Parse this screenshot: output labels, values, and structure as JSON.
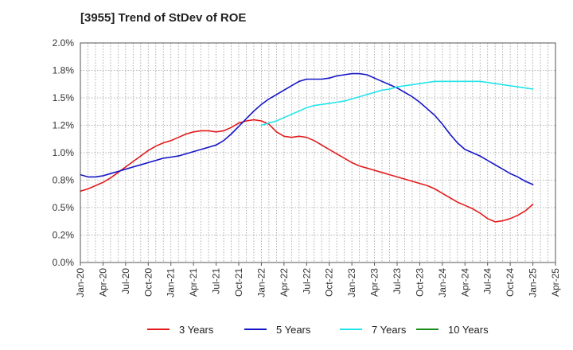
{
  "chart_data": {
    "type": "line",
    "title": "[3955]  Trend of StDev of ROE",
    "xlabel": "",
    "ylabel": "",
    "x_ticks": [
      "Jan-20",
      "Apr-20",
      "Jul-20",
      "Oct-20",
      "Jan-21",
      "Apr-21",
      "Jul-21",
      "Oct-21",
      "Jan-22",
      "Apr-22",
      "Jul-22",
      "Oct-22",
      "Jan-23",
      "Apr-23",
      "Jul-23",
      "Oct-23",
      "Jan-24",
      "Apr-24",
      "Jul-24",
      "Oct-24",
      "Jan-25",
      "Apr-25"
    ],
    "y_ticks": [
      "0.0%",
      "0.2%",
      "0.5%",
      "0.8%",
      "1.0%",
      "1.2%",
      "1.5%",
      "1.8%",
      "2.0%"
    ],
    "ylim": [
      0,
      2.0
    ],
    "grid": true,
    "legend_position": "bottom",
    "series": [
      {
        "name": "3 Years",
        "color": "#e31a1c",
        "x": [
          "Jan-20",
          "Feb-20",
          "Mar-20",
          "Apr-20",
          "May-20",
          "Jun-20",
          "Jul-20",
          "Aug-20",
          "Sep-20",
          "Oct-20",
          "Nov-20",
          "Dec-20",
          "Jan-21",
          "Feb-21",
          "Mar-21",
          "Apr-21",
          "May-21",
          "Jun-21",
          "Jul-21",
          "Aug-21",
          "Sep-21",
          "Oct-21",
          "Nov-21",
          "Dec-21",
          "Jan-22",
          "Feb-22",
          "Mar-22",
          "Apr-22",
          "May-22",
          "Jun-22",
          "Jul-22",
          "Aug-22",
          "Sep-22",
          "Oct-22",
          "Nov-22",
          "Dec-22",
          "Jan-23",
          "Feb-23",
          "Mar-23",
          "Apr-23",
          "May-23",
          "Jun-23",
          "Jul-23",
          "Aug-23",
          "Sep-23",
          "Oct-23",
          "Nov-23",
          "Dec-23",
          "Jan-24",
          "Feb-24",
          "Mar-24",
          "Apr-24",
          "May-24",
          "Jun-24",
          "Jul-24",
          "Aug-24",
          "Sep-24",
          "Oct-24",
          "Nov-24",
          "Dec-24",
          "Jan-25"
        ],
        "values": [
          0.65,
          0.67,
          0.7,
          0.73,
          0.77,
          0.82,
          0.87,
          0.92,
          0.97,
          1.02,
          1.06,
          1.09,
          1.11,
          1.14,
          1.17,
          1.19,
          1.2,
          1.2,
          1.19,
          1.2,
          1.23,
          1.27,
          1.29,
          1.3,
          1.29,
          1.26,
          1.19,
          1.15,
          1.14,
          1.15,
          1.14,
          1.11,
          1.07,
          1.03,
          0.99,
          0.95,
          0.91,
          0.88,
          0.86,
          0.84,
          0.82,
          0.8,
          0.78,
          0.76,
          0.74,
          0.72,
          0.7,
          0.67,
          0.63,
          0.59,
          0.55,
          0.52,
          0.49,
          0.45,
          0.4,
          0.37,
          0.38,
          0.4,
          0.43,
          0.47,
          0.53
        ]
      },
      {
        "name": "5 Years",
        "color": "#1515c8",
        "x": [
          "Jan-20",
          "Feb-20",
          "Mar-20",
          "Apr-20",
          "May-20",
          "Jun-20",
          "Jul-20",
          "Aug-20",
          "Sep-20",
          "Oct-20",
          "Nov-20",
          "Dec-20",
          "Jan-21",
          "Feb-21",
          "Mar-21",
          "Apr-21",
          "May-21",
          "Jun-21",
          "Jul-21",
          "Aug-21",
          "Sep-21",
          "Oct-21",
          "Nov-21",
          "Dec-21",
          "Jan-22",
          "Feb-22",
          "Mar-22",
          "Apr-22",
          "May-22",
          "Jun-22",
          "Jul-22",
          "Aug-22",
          "Sep-22",
          "Oct-22",
          "Nov-22",
          "Dec-22",
          "Jan-23",
          "Feb-23",
          "Mar-23",
          "Apr-23",
          "May-23",
          "Jun-23",
          "Jul-23",
          "Aug-23",
          "Sep-23",
          "Oct-23",
          "Nov-23",
          "Dec-23",
          "Jan-24",
          "Feb-24",
          "Mar-24",
          "Apr-24",
          "May-24",
          "Jun-24",
          "Jul-24",
          "Aug-24",
          "Sep-24",
          "Oct-24",
          "Nov-24",
          "Dec-24",
          "Jan-25"
        ],
        "values": [
          0.8,
          0.78,
          0.78,
          0.79,
          0.81,
          0.83,
          0.85,
          0.87,
          0.89,
          0.91,
          0.93,
          0.95,
          0.96,
          0.97,
          0.99,
          1.01,
          1.03,
          1.05,
          1.07,
          1.11,
          1.17,
          1.24,
          1.31,
          1.38,
          1.44,
          1.49,
          1.53,
          1.57,
          1.61,
          1.65,
          1.67,
          1.67,
          1.67,
          1.68,
          1.7,
          1.71,
          1.72,
          1.72,
          1.71,
          1.68,
          1.65,
          1.62,
          1.59,
          1.55,
          1.51,
          1.46,
          1.4,
          1.34,
          1.26,
          1.17,
          1.09,
          1.03,
          1.0,
          0.97,
          0.93,
          0.89,
          0.85,
          0.81,
          0.78,
          0.74,
          0.71
        ]
      },
      {
        "name": "7 Years",
        "color": "#22e5ea",
        "x": [
          "Jan-22",
          "Feb-22",
          "Mar-22",
          "Apr-22",
          "May-22",
          "Jun-22",
          "Jul-22",
          "Aug-22",
          "Sep-22",
          "Oct-22",
          "Nov-22",
          "Dec-22",
          "Jan-23",
          "Feb-23",
          "Mar-23",
          "Apr-23",
          "May-23",
          "Jun-23",
          "Jul-23",
          "Aug-23",
          "Sep-23",
          "Oct-23",
          "Nov-23",
          "Dec-23",
          "Jan-24",
          "Feb-24",
          "Mar-24",
          "Apr-24",
          "May-24",
          "Jun-24",
          "Jul-24",
          "Aug-24",
          "Sep-24",
          "Oct-24",
          "Nov-24",
          "Dec-24",
          "Jan-25"
        ],
        "values": [
          1.25,
          1.27,
          1.29,
          1.32,
          1.35,
          1.38,
          1.41,
          1.43,
          1.44,
          1.45,
          1.46,
          1.47,
          1.49,
          1.51,
          1.53,
          1.55,
          1.57,
          1.58,
          1.6,
          1.61,
          1.62,
          1.63,
          1.64,
          1.65,
          1.65,
          1.65,
          1.65,
          1.65,
          1.65,
          1.65,
          1.64,
          1.63,
          1.62,
          1.61,
          1.6,
          1.59,
          1.58
        ]
      },
      {
        "name": "10 Years",
        "color": "#1a8c1a",
        "x": [],
        "values": []
      }
    ]
  }
}
